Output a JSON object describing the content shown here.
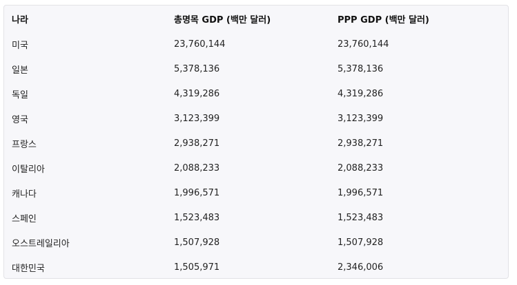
{
  "table": {
    "headers": [
      "나라",
      "총명목 GDP (백만 달러)",
      "PPP GDP (백만 달러)"
    ],
    "rows": [
      [
        "미국",
        "23,760,144",
        "23,760,144"
      ],
      [
        "일본",
        "5,378,136",
        "5,378,136"
      ],
      [
        "독일",
        "4,319,286",
        "4,319,286"
      ],
      [
        "영국",
        "3,123,399",
        "3,123,399"
      ],
      [
        "프랑스",
        "2,938,271",
        "2,938,271"
      ],
      [
        "이탈리아",
        "2,088,233",
        "2,088,233"
      ],
      [
        "캐나다",
        "1,996,571",
        "1,996,571"
      ],
      [
        "스페인",
        "1,523,483",
        "1,523,483"
      ],
      [
        "오스트레일리아",
        "1,507,928",
        "1,507,928"
      ],
      [
        "대한민국",
        "1,505,971",
        "2,346,006"
      ]
    ]
  }
}
